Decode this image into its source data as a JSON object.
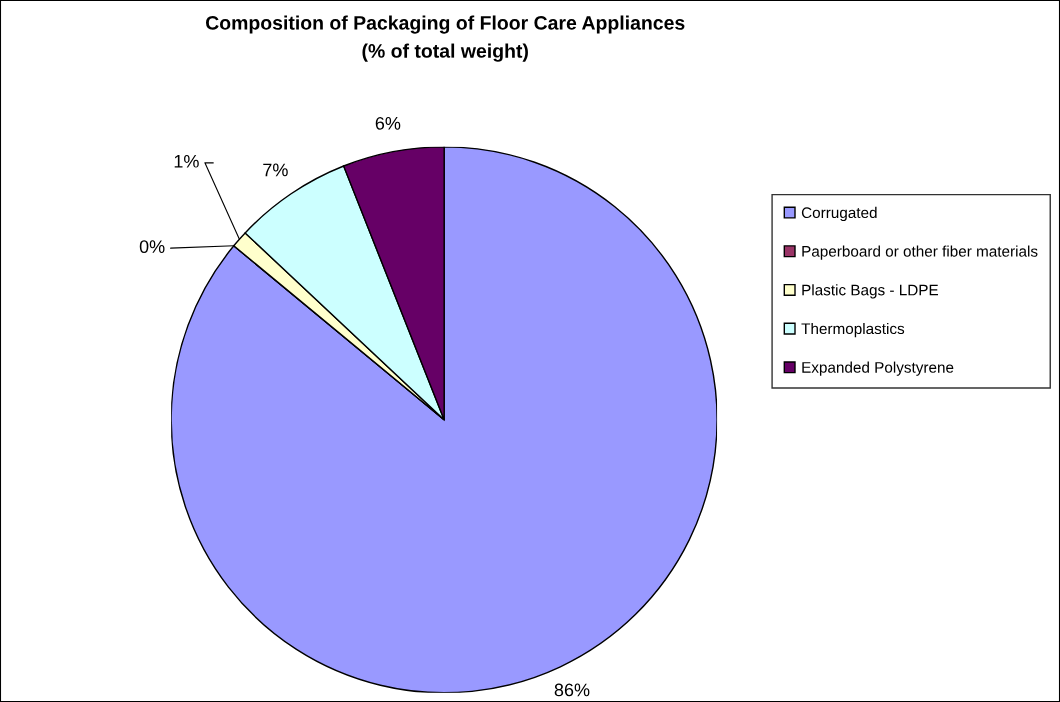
{
  "chart_data": {
    "type": "pie",
    "title": "Composition of Packaging of Floor Care Appliances",
    "subtitle": "(% of total weight)",
    "categories": [
      "Corrugated",
      "Paperboard or other fiber materials",
      "Plastic Bags - LDPE",
      "Thermoplastics",
      "Expanded Polystyrene"
    ],
    "values": [
      86,
      0,
      1,
      7,
      6
    ],
    "colors": [
      "#9999ff",
      "#993366",
      "#ffffcc",
      "#ccffff",
      "#660066"
    ],
    "value_labels": [
      "86%",
      "0%",
      "1%",
      "7%",
      "6%"
    ],
    "legend": "right"
  }
}
